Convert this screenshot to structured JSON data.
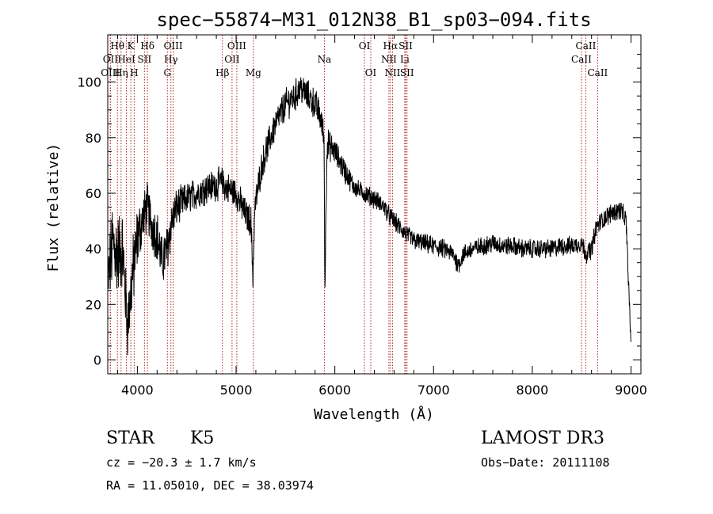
{
  "page": {
    "title": "spec−55874−M31_012N38_B1_sp03−094.fits",
    "object_class": "STAR",
    "subclass": "K5",
    "survey": "LAMOST DR3",
    "redshift_text": "cz = −20.3 ± 1.7 km/s",
    "obs_date_text": "Obs−Date: 20111108",
    "coords_text": "RA =  11.05010, DEC =  38.03974"
  },
  "chart_data": {
    "type": "line",
    "title": "spec−55874−M31_012N38_B1_sp03−094.fits",
    "xlabel": "Wavelength (Å)",
    "ylabel": "Flux (relative)",
    "xlim": [
      3700,
      9100
    ],
    "ylim": [
      -5,
      117
    ],
    "x_ticks": [
      4000,
      5000,
      6000,
      7000,
      8000,
      9000
    ],
    "y_ticks": [
      0,
      20,
      40,
      60,
      80,
      100
    ],
    "x_tick_labels": [
      "4000",
      "5000",
      "6000",
      "7000",
      "8000",
      "9000"
    ],
    "y_tick_labels": [
      "0",
      "20",
      "40",
      "60",
      "80",
      "100"
    ],
    "spectrum_anchors": {
      "x": [
        3700,
        3750,
        3800,
        3850,
        3900,
        3950,
        4000,
        4050,
        4100,
        4150,
        4200,
        4250,
        4300,
        4350,
        4400,
        4500,
        4600,
        4700,
        4800,
        4850,
        4900,
        5000,
        5100,
        5150,
        5170,
        5190,
        5250,
        5300,
        5400,
        5500,
        5600,
        5650,
        5700,
        5800,
        5850,
        5890,
        5900,
        5920,
        6000,
        6100,
        6200,
        6300,
        6400,
        6500,
        6550,
        6600,
        6700,
        6800,
        6900,
        7000,
        7100,
        7200,
        7250,
        7300,
        7400,
        7500,
        7600,
        7700,
        7800,
        7900,
        8000,
        8100,
        8200,
        8300,
        8400,
        8500,
        8550,
        8600,
        8650,
        8700,
        8800,
        8900,
        8950,
        9000
      ],
      "y": [
        28,
        42,
        38,
        40,
        12,
        30,
        44,
        50,
        55,
        48,
        45,
        35,
        40,
        50,
        55,
        58,
        60,
        62,
        63,
        64,
        62,
        60,
        52,
        50,
        30,
        55,
        68,
        75,
        85,
        92,
        95,
        98,
        96,
        92,
        88,
        80,
        25,
        78,
        75,
        68,
        62,
        60,
        58,
        55,
        52,
        50,
        46,
        43,
        42,
        41,
        40,
        38,
        34,
        38,
        40,
        41,
        42,
        41,
        41,
        40,
        40,
        40,
        40,
        41,
        41,
        42,
        38,
        40,
        48,
        50,
        53,
        54,
        50,
        5
      ],
      "noise_amplitude": [
        10,
        14,
        14,
        12,
        10,
        12,
        10,
        8,
        8,
        8,
        8,
        8,
        8,
        7,
        6,
        5,
        5,
        5,
        5,
        5,
        5,
        5,
        5,
        5,
        5,
        5,
        5,
        5,
        5,
        5,
        5,
        5,
        5,
        5,
        5,
        5,
        5,
        5,
        4,
        4,
        3,
        3,
        3,
        3,
        3,
        3,
        3,
        3,
        3,
        3,
        3,
        3,
        3,
        3,
        3,
        3,
        3,
        3,
        3,
        3,
        3,
        3,
        3,
        3,
        3,
        3,
        3,
        3,
        3,
        3,
        3,
        3,
        3,
        3
      ]
    },
    "spectral_lines": [
      {
        "label": "Hθ",
        "wavelength": 3798,
        "row": 1
      },
      {
        "label": "OII",
        "wavelength": 3727,
        "row": 2
      },
      {
        "label": "OIII",
        "wavelength": 3726,
        "row": 3
      },
      {
        "label": "Hη",
        "wavelength": 3835,
        "row": 3
      },
      {
        "label": "K",
        "wavelength": 3934,
        "row": 1
      },
      {
        "label": "HeI",
        "wavelength": 3889,
        "row": 2
      },
      {
        "label": "H",
        "wavelength": 3968,
        "row": 3
      },
      {
        "label": "Hδ",
        "wavelength": 4102,
        "row": 1
      },
      {
        "label": "SII",
        "wavelength": 4072,
        "row": 2
      },
      {
        "label": "OIII",
        "wavelength": 4363,
        "row": 1
      },
      {
        "label": "Hγ",
        "wavelength": 4340,
        "row": 2
      },
      {
        "label": "G",
        "wavelength": 4304,
        "row": 3
      },
      {
        "label": "OIII",
        "wavelength": 5007,
        "row": 1
      },
      {
        "label": "OII",
        "wavelength": 4959,
        "row": 2
      },
      {
        "label": "Hβ",
        "wavelength": 4861,
        "row": 3
      },
      {
        "label": "Mg",
        "wavelength": 5175,
        "row": 3
      },
      {
        "label": "Na",
        "wavelength": 5894,
        "row": 2
      },
      {
        "label": "OI",
        "wavelength": 6300,
        "row": 1
      },
      {
        "label": "OI",
        "wavelength": 6364,
        "row": 3
      },
      {
        "label": "Hα",
        "wavelength": 6563,
        "row": 1
      },
      {
        "label": "SII",
        "wavelength": 6717,
        "row": 1
      },
      {
        "label": "NII",
        "wavelength": 6548,
        "row": 2
      },
      {
        "label": "Li",
        "wavelength": 6708,
        "row": 2
      },
      {
        "label": "NII",
        "wavelength": 6584,
        "row": 3
      },
      {
        "label": "SII",
        "wavelength": 6731,
        "row": 3
      },
      {
        "label": "CaII",
        "wavelength": 8542,
        "row": 1
      },
      {
        "label": "CaII",
        "wavelength": 8498,
        "row": 2
      },
      {
        "label": "CaII",
        "wavelength": 8662,
        "row": 3
      }
    ]
  }
}
